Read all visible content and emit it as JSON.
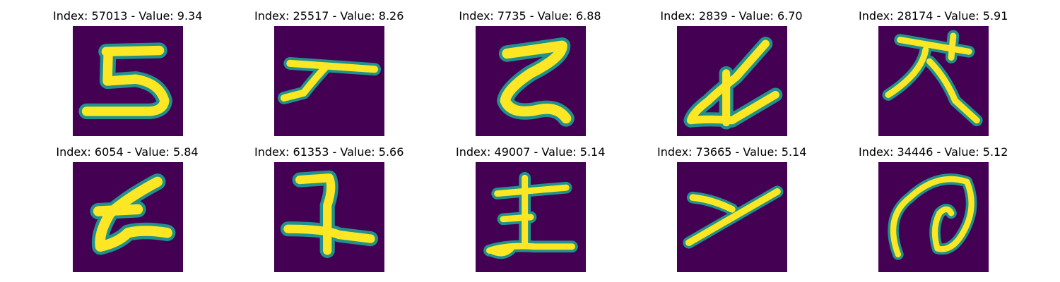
{
  "panels": [
    {
      "title": "Index: 57013 - Value: 9.34",
      "glyph": "five-like-stroke"
    },
    {
      "title": "Index: 25517 - Value: 8.26",
      "glyph": "horizontal-stroke-with-hook"
    },
    {
      "title": "Index: 7735 - Value: 6.88",
      "glyph": "z-like-stroke"
    },
    {
      "title": "Index: 2839 - Value: 6.70",
      "glyph": "loop-with-diagonal"
    },
    {
      "title": "Index: 28174 - Value: 5.91",
      "glyph": "cross-with-diagonals"
    },
    {
      "title": "Index: 6054 - Value: 5.84",
      "glyph": "z-like-stroke"
    },
    {
      "title": "Index: 61353 - Value: 5.66",
      "glyph": "cross-with-hook"
    },
    {
      "title": "Index: 49007 - Value: 5.14",
      "glyph": "vertical-with-crossbars"
    },
    {
      "title": "Index: 73665 - Value: 5.14",
      "glyph": "y-like-diagonals"
    },
    {
      "title": "Index: 34446 - Value: 5.12",
      "glyph": "spiral-at-sign"
    }
  ],
  "colors": {
    "background": "#440154",
    "stroke": "#fde725",
    "stroke_edge": "#21918c"
  }
}
